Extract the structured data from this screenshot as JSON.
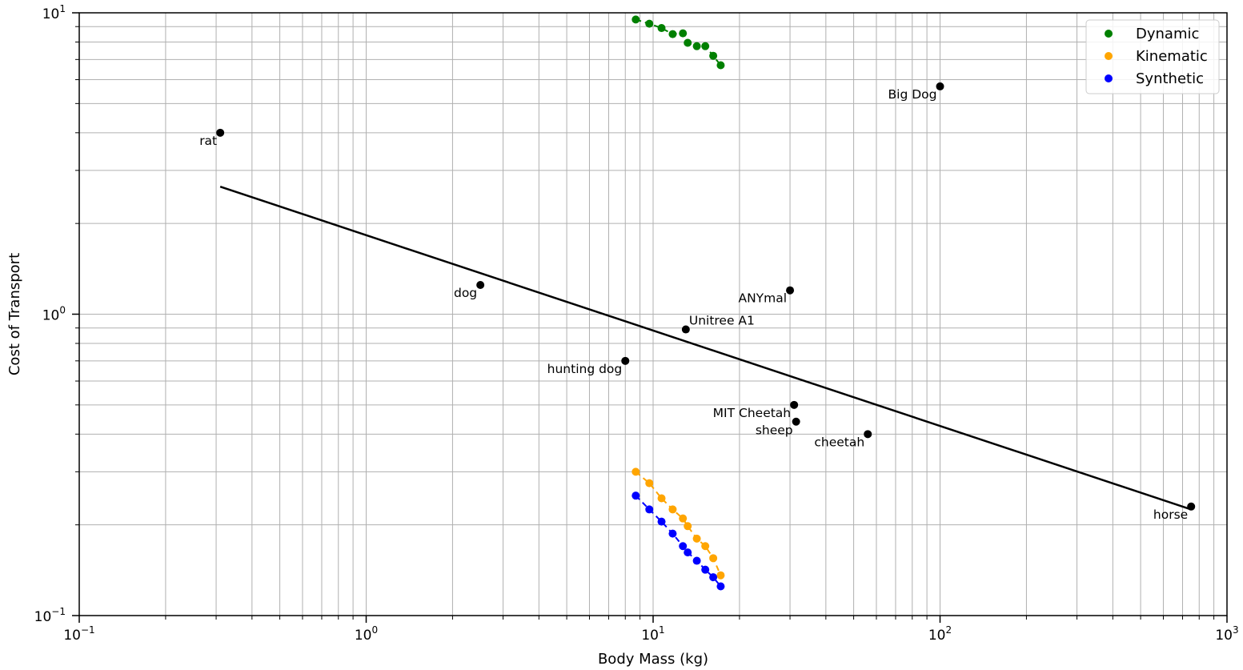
{
  "chart_data": {
    "type": "scatter",
    "xlabel": "Body Mass (kg)",
    "ylabel": "Cost of Transport",
    "xscale": "log",
    "yscale": "log",
    "xlim": [
      0.1,
      1000
    ],
    "ylim": [
      0.1,
      10
    ],
    "grid": true,
    "legend_position": "top-right",
    "x_ticks": [
      {
        "base": "10",
        "exp": "−1"
      },
      {
        "base": "10",
        "exp": "0"
      },
      {
        "base": "10",
        "exp": "1"
      },
      {
        "base": "10",
        "exp": "2"
      },
      {
        "base": "10",
        "exp": "3"
      }
    ],
    "y_ticks": [
      {
        "base": "10",
        "exp": "−1"
      },
      {
        "base": "10",
        "exp": "0"
      },
      {
        "base": "10",
        "exp": "1"
      }
    ],
    "colors": {
      "Dynamic": "#008000",
      "Kinematic": "#ffa500",
      "Synthetic": "#0000ff",
      "reference": "#000000"
    },
    "reference_points": [
      {
        "label": "rat",
        "x": 0.31,
        "y": 4.0
      },
      {
        "label": "dog",
        "x": 2.5,
        "y": 1.25
      },
      {
        "label": "hunting dog",
        "x": 8.0,
        "y": 0.7
      },
      {
        "label": "Unitree A1",
        "x": 13.0,
        "y": 0.89
      },
      {
        "label": "ANYmal",
        "x": 30.0,
        "y": 1.2
      },
      {
        "label": "MIT Cheetah",
        "x": 31.0,
        "y": 0.5
      },
      {
        "label": "sheep",
        "x": 31.5,
        "y": 0.44
      },
      {
        "label": "cheetah",
        "x": 56.0,
        "y": 0.4
      },
      {
        "label": "Big Dog",
        "x": 100.0,
        "y": 5.7
      },
      {
        "label": "horse",
        "x": 750.0,
        "y": 0.23
      }
    ],
    "trend_line": {
      "x": [
        0.31,
        750.0
      ],
      "y": [
        2.65,
        0.225
      ]
    },
    "series": [
      {
        "name": "Dynamic",
        "x": [
          8.7,
          9.7,
          10.7,
          11.7,
          12.7,
          13.2,
          14.2,
          15.2,
          16.2,
          17.2
        ],
        "y": [
          9.5,
          9.2,
          8.9,
          8.5,
          8.55,
          7.95,
          7.75,
          7.75,
          7.2,
          6.7
        ]
      },
      {
        "name": "Kinematic",
        "x": [
          8.7,
          9.7,
          10.7,
          11.7,
          12.7,
          13.2,
          14.2,
          15.2,
          16.2,
          17.2
        ],
        "y": [
          0.3,
          0.275,
          0.245,
          0.225,
          0.21,
          0.198,
          0.18,
          0.17,
          0.155,
          0.136
        ]
      },
      {
        "name": "Synthetic",
        "x": [
          8.7,
          9.7,
          10.7,
          11.7,
          12.7,
          13.2,
          14.2,
          15.2,
          16.2,
          17.2
        ],
        "y": [
          0.25,
          0.225,
          0.205,
          0.187,
          0.17,
          0.162,
          0.152,
          0.142,
          0.134,
          0.125
        ]
      }
    ]
  }
}
